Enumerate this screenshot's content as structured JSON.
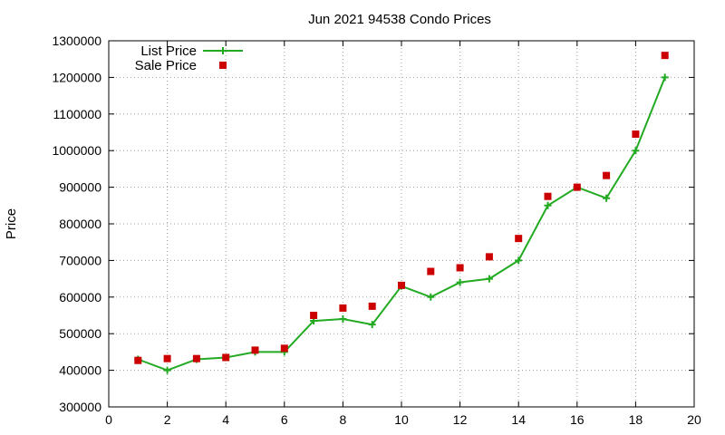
{
  "chart_data": {
    "type": "line",
    "title": "Jun 2021 94538 Condo Prices",
    "xlabel": "",
    "ylabel": "Price",
    "xlim": [
      0,
      20
    ],
    "ylim": [
      300000,
      1300000
    ],
    "x_ticks": [
      0,
      2,
      4,
      6,
      8,
      10,
      12,
      14,
      16,
      18,
      20
    ],
    "y_ticks": [
      300000,
      400000,
      500000,
      600000,
      700000,
      800000,
      900000,
      1000000,
      1100000,
      1200000,
      1300000
    ],
    "x_tick_labels": [
      "0",
      "2",
      "4",
      "6",
      "8",
      "10",
      "12",
      "14",
      "16",
      "18",
      "20"
    ],
    "y_tick_labels": [
      "300000",
      "400000",
      "500000",
      "600000",
      "700000",
      "800000",
      "900000",
      "1000000",
      "1100000",
      "1200000",
      "1300000"
    ],
    "grid": true,
    "legend_position": "top-left",
    "series": [
      {
        "name": "List Price",
        "style": "line-with-plus-markers",
        "color": "#22aa22",
        "x": [
          1,
          2,
          3,
          4,
          5,
          6,
          7,
          8,
          9,
          10,
          11,
          12,
          13,
          14,
          15,
          16,
          17,
          18,
          19
        ],
        "y": [
          430000,
          400000,
          430000,
          435000,
          450000,
          450000,
          535000,
          540000,
          525000,
          630000,
          600000,
          640000,
          650000,
          700000,
          850000,
          900000,
          870000,
          1000000,
          1200000
        ]
      },
      {
        "name": "Sale Price",
        "style": "square-points",
        "color": "#cc0000",
        "x": [
          1,
          2,
          3,
          4,
          5,
          6,
          7,
          8,
          9,
          10,
          11,
          12,
          13,
          14,
          15,
          16,
          17,
          18,
          19
        ],
        "y": [
          427000,
          432000,
          432000,
          435000,
          455000,
          460000,
          550000,
          570000,
          575000,
          632000,
          670000,
          680000,
          710000,
          760000,
          875000,
          900000,
          932000,
          1045000,
          1260000
        ]
      }
    ]
  }
}
